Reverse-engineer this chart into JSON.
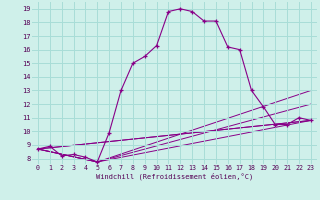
{
  "xlabel": "Windchill (Refroidissement éolien,°C)",
  "bg_color": "#cff0ea",
  "grid_color": "#a8ddd7",
  "line_color": "#880088",
  "x_ticks": [
    0,
    1,
    2,
    3,
    4,
    5,
    6,
    7,
    8,
    9,
    10,
    11,
    12,
    13,
    14,
    15,
    16,
    17,
    18,
    19,
    20,
    21,
    22,
    23
  ],
  "y_ticks": [
    8,
    9,
    10,
    11,
    12,
    13,
    14,
    15,
    16,
    17,
    18,
    19
  ],
  "ylim": [
    7.6,
    19.5
  ],
  "xlim": [
    -0.5,
    23.5
  ],
  "main_x": [
    0,
    1,
    2,
    3,
    4,
    5,
    6,
    7,
    8,
    9,
    10,
    11,
    12,
    13,
    14,
    15,
    16,
    17,
    18,
    19,
    20,
    21,
    22,
    23
  ],
  "main_y": [
    8.7,
    8.9,
    8.2,
    8.3,
    8.1,
    7.75,
    9.9,
    13.0,
    15.0,
    15.5,
    16.3,
    18.8,
    19.0,
    18.8,
    18.1,
    18.1,
    16.2,
    16.0,
    13.0,
    11.8,
    10.5,
    10.5,
    11.0,
    10.8
  ],
  "fan_lines": [
    {
      "x": [
        0,
        23
      ],
      "y": [
        8.7,
        10.8
      ]
    },
    {
      "x": [
        0,
        23
      ],
      "y": [
        8.7,
        10.8
      ]
    },
    {
      "x": [
        0,
        5,
        23
      ],
      "y": [
        8.7,
        7.75,
        10.8
      ]
    },
    {
      "x": [
        0,
        5,
        23
      ],
      "y": [
        8.7,
        7.75,
        12.0
      ]
    },
    {
      "x": [
        0,
        5,
        23
      ],
      "y": [
        8.7,
        7.75,
        13.0
      ]
    }
  ],
  "tick_fontsize": 5,
  "xlabel_fontsize": 5
}
